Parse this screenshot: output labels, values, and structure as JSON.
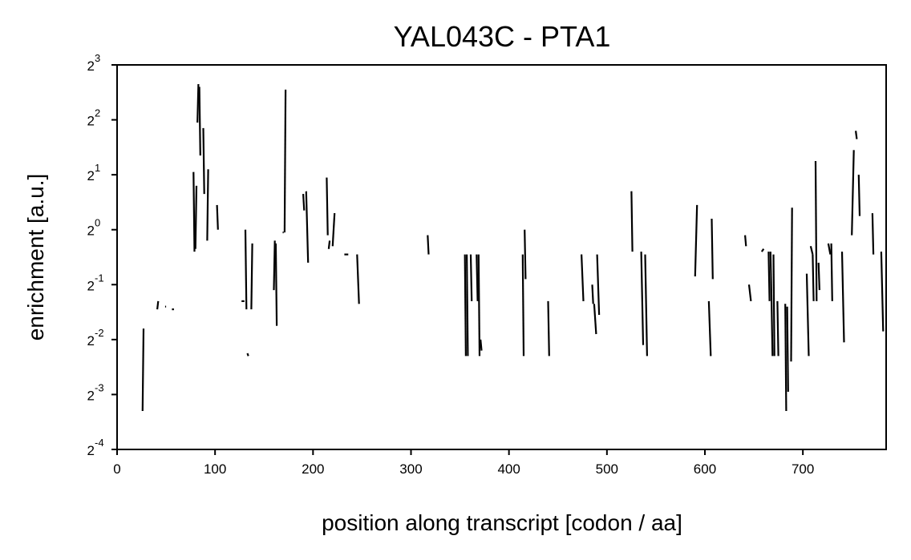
{
  "chart_data": {
    "type": "line",
    "title": "YAL043C - PTA1",
    "xlabel": "position along transcript [codon / aa]",
    "ylabel": "enrichment [a.u.]",
    "xlim": [
      0,
      785
    ],
    "ylim": [
      -4,
      3
    ],
    "yscale": "log2",
    "grid": false,
    "x_ticks": [
      0,
      100,
      200,
      300,
      400,
      500,
      600,
      700
    ],
    "y_ticks": [
      {
        "exp": -4,
        "base": "2",
        "sup": "-4"
      },
      {
        "exp": -3,
        "base": "2",
        "sup": "-3"
      },
      {
        "exp": -2,
        "base": "2",
        "sup": "-2"
      },
      {
        "exp": -1,
        "base": "2",
        "sup": "-1"
      },
      {
        "exp": 0,
        "base": "2",
        "sup": "0"
      },
      {
        "exp": 1,
        "base": "2",
        "sup": "1"
      },
      {
        "exp": 2,
        "base": "2",
        "sup": "2"
      },
      {
        "exp": 3,
        "base": "2",
        "sup": "3"
      }
    ],
    "series_color": "#000000",
    "segments": [
      [
        [
          26,
          -3.3
        ],
        [
          27,
          -1.8
        ]
      ],
      [
        [
          41,
          -1.45
        ],
        [
          42,
          -1.3
        ]
      ],
      [
        [
          49,
          -1.4
        ],
        [
          50,
          -1.4
        ]
      ],
      [
        [
          56,
          -1.45
        ],
        [
          58,
          -1.45
        ]
      ],
      [
        [
          78,
          1.05
        ],
        [
          79,
          -0.4
        ]
      ],
      [
        [
          80,
          -0.35
        ],
        [
          81,
          0.8
        ]
      ],
      [
        [
          82,
          1.95
        ],
        [
          83,
          2.65
        ]
      ],
      [
        [
          84,
          2.6
        ],
        [
          85,
          1.35
        ]
      ],
      [
        [
          88,
          1.85
        ],
        [
          89,
          0.65
        ]
      ],
      [
        [
          92,
          -0.2
        ],
        [
          93,
          1.1
        ]
      ],
      [
        [
          102,
          0.45
        ],
        [
          103,
          0
        ]
      ],
      [
        [
          127,
          -1.3
        ],
        [
          130,
          -1.3
        ]
      ],
      [
        [
          131,
          0
        ],
        [
          132,
          -1.45
        ]
      ],
      [
        [
          133,
          -2.25
        ],
        [
          134,
          -2.3
        ]
      ],
      [
        [
          137,
          -1.45
        ],
        [
          138,
          -0.25
        ]
      ],
      [
        [
          160,
          -1.1
        ],
        [
          161,
          -0.2
        ]
      ],
      [
        [
          162,
          -0.25
        ],
        [
          163,
          -1.75
        ]
      ],
      [
        [
          169,
          -0.05
        ],
        [
          170,
          -0.05
        ]
      ],
      [
        [
          171,
          -0.05
        ],
        [
          172,
          2.55
        ]
      ],
      [
        [
          190,
          0.65
        ],
        [
          191,
          0.35
        ]
      ],
      [
        [
          193,
          0.7
        ],
        [
          195,
          -0.6
        ]
      ],
      [
        [
          214,
          0.95
        ],
        [
          215,
          -0.1
        ]
      ],
      [
        [
          216,
          -0.35
        ],
        [
          217,
          -0.2
        ]
      ],
      [
        [
          220,
          -0.3
        ],
        [
          222,
          0.3
        ]
      ],
      [
        [
          232,
          -0.45
        ],
        [
          236,
          -0.45
        ]
      ],
      [
        [
          245,
          -0.45
        ],
        [
          247,
          -1.35
        ]
      ],
      [
        [
          317,
          -0.1
        ],
        [
          318,
          -0.45
        ]
      ],
      [
        [
          355,
          -0.45
        ],
        [
          356,
          -2.3
        ]
      ],
      [
        [
          357,
          -0.45
        ],
        [
          358,
          -2.3
        ]
      ],
      [
        [
          361,
          -0.45
        ],
        [
          362,
          -1.3
        ]
      ],
      [
        [
          367,
          -0.45
        ],
        [
          368,
          -1.3
        ]
      ],
      [
        [
          369,
          -0.45
        ],
        [
          370,
          -2.3
        ]
      ],
      [
        [
          371,
          -2.0
        ],
        [
          372,
          -2.2
        ]
      ],
      [
        [
          414,
          -0.45
        ],
        [
          415,
          -2.3
        ]
      ],
      [
        [
          416,
          0
        ],
        [
          417,
          -0.9
        ]
      ],
      [
        [
          440,
          -1.3
        ],
        [
          441,
          -2.3
        ]
      ],
      [
        [
          474,
          -0.45
        ],
        [
          476,
          -1.3
        ]
      ],
      [
        [
          485,
          -1.0
        ],
        [
          486,
          -1.35
        ]
      ],
      [
        [
          487,
          -1.35
        ],
        [
          489,
          -1.9
        ]
      ],
      [
        [
          490,
          -0.45
        ],
        [
          492,
          -1.55
        ]
      ],
      [
        [
          525,
          0.7
        ],
        [
          526,
          -0.4
        ]
      ],
      [
        [
          535,
          -0.4
        ],
        [
          537,
          -2.1
        ]
      ],
      [
        [
          539,
          -0.45
        ],
        [
          541,
          -2.3
        ]
      ],
      [
        [
          590,
          -0.85
        ],
        [
          592,
          0.45
        ]
      ],
      [
        [
          604,
          -1.3
        ],
        [
          606,
          -2.3
        ]
      ],
      [
        [
          607,
          0.2
        ],
        [
          608,
          -0.9
        ]
      ],
      [
        [
          641,
          -0.1
        ],
        [
          642,
          -0.3
        ]
      ],
      [
        [
          645,
          -1.0
        ],
        [
          647,
          -1.3
        ]
      ],
      [
        [
          658,
          -0.4
        ],
        [
          660,
          -0.35
        ]
      ],
      [
        [
          665,
          -0.4
        ],
        [
          666,
          -1.3
        ]
      ],
      [
        [
          667,
          -0.4
        ],
        [
          668,
          -1.3
        ]
      ],
      [
        [
          668,
          -1.3
        ],
        [
          669,
          -2.3
        ]
      ],
      [
        [
          670,
          -0.45
        ],
        [
          671,
          -2.3
        ]
      ],
      [
        [
          674,
          -1.3
        ],
        [
          675,
          -2.3
        ]
      ],
      [
        [
          682,
          -1.35
        ],
        [
          683,
          -3.3
        ]
      ],
      [
        [
          684,
          -1.4
        ],
        [
          685,
          -2.95
        ]
      ],
      [
        [
          688,
          -2.4
        ],
        [
          689,
          0.4
        ]
      ],
      [
        [
          704,
          -0.8
        ],
        [
          706,
          -2.3
        ]
      ],
      [
        [
          708,
          -0.3
        ],
        [
          710,
          -0.45
        ]
      ],
      [
        [
          710,
          -0.45
        ],
        [
          711,
          -1.3
        ]
      ],
      [
        [
          713,
          1.25
        ],
        [
          714,
          -1.3
        ]
      ],
      [
        [
          716,
          -0.6
        ],
        [
          717,
          -1.1
        ]
      ],
      [
        [
          726,
          -0.25
        ],
        [
          728,
          -0.45
        ]
      ],
      [
        [
          729,
          -0.25
        ],
        [
          730,
          -1.3
        ]
      ],
      [
        [
          740,
          -0.4
        ],
        [
          742,
          -2.05
        ]
      ],
      [
        [
          750,
          -0.1
        ],
        [
          752,
          1.45
        ]
      ],
      [
        [
          754,
          1.8
        ],
        [
          755,
          1.65
        ]
      ],
      [
        [
          757,
          1.0
        ],
        [
          758,
          0.25
        ]
      ],
      [
        [
          771,
          0.3
        ],
        [
          772,
          -0.45
        ]
      ],
      [
        [
          780,
          -0.4
        ],
        [
          782,
          -1.85
        ]
      ]
    ]
  }
}
